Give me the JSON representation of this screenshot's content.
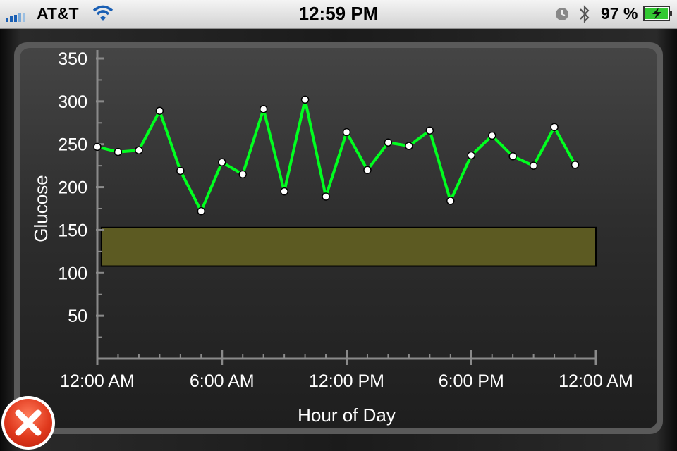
{
  "status_bar": {
    "carrier": "AT&T",
    "time": "12:59 PM",
    "battery_percent": "97 %"
  },
  "colors": {
    "line": "#00ff1f",
    "target_band_fill": "#5c5a22",
    "axis": "#8a8a8a",
    "text": "#ffffff"
  },
  "chart_data": {
    "type": "line",
    "title": "",
    "xlabel": "Hour of Day",
    "ylabel": "Glucose",
    "xlim": [
      0,
      24
    ],
    "ylim": [
      0,
      350
    ],
    "y_ticks": [
      50,
      100,
      150,
      200,
      250,
      300,
      350
    ],
    "y_tick_labels": [
      "50",
      "100",
      "150",
      "200",
      "250",
      "300",
      "350"
    ],
    "x_ticks": [
      0,
      6,
      12,
      18,
      24
    ],
    "x_tick_labels": [
      "12:00 AM",
      "6:00 AM",
      "12:00 PM",
      "6:00 PM",
      "12:00 AM"
    ],
    "x_minor_tick_step": 1,
    "target_band": {
      "low": 108,
      "high": 153,
      "x_start": 0.2,
      "x_end": 24
    },
    "grid": false,
    "legend": "none",
    "series": [
      {
        "x": [
          0,
          1,
          2,
          3,
          4,
          5,
          6,
          7,
          8,
          9,
          10,
          11,
          12,
          13,
          14,
          15,
          16,
          17,
          18,
          19,
          20,
          21,
          22,
          23
        ],
        "values": [
          247,
          241,
          243,
          289,
          219,
          172,
          229,
          215,
          291,
          195,
          302,
          189,
          264,
          220,
          252,
          248,
          266,
          184,
          237,
          260,
          236,
          225,
          270,
          226
        ]
      }
    ]
  }
}
